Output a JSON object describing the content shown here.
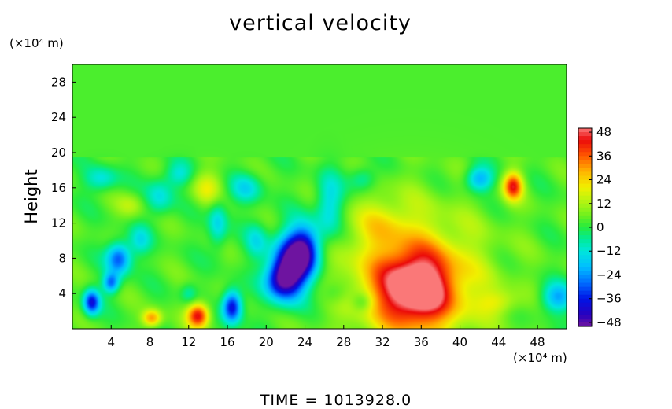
{
  "chart_data": {
    "type": "heatmap",
    "title": "vertical velocity",
    "ylabel": "Height",
    "x_unit": "(×10⁴ m)",
    "y_unit": "(×10⁴ m)",
    "x_ticks": [
      4,
      8,
      12,
      16,
      20,
      24,
      28,
      32,
      36,
      40,
      44,
      48
    ],
    "y_ticks": [
      4,
      8,
      12,
      16,
      20,
      24,
      28
    ],
    "xlim": [
      0,
      51
    ],
    "ylim": [
      0,
      30
    ],
    "colorbar": {
      "ticks": [
        48,
        36,
        24,
        12,
        0,
        -12,
        -24,
        -36,
        -48
      ],
      "range": [
        -50,
        50
      ]
    },
    "background_value": 3,
    "features": [
      {
        "x": 35.5,
        "y": 4.5,
        "value": 46,
        "sx": 2.8,
        "sy": 3.0
      },
      {
        "x": 35,
        "y": 6,
        "value": 20,
        "sx": 5.5,
        "sy": 5.5
      },
      {
        "x": 13,
        "y": 1.5,
        "value": 42,
        "sx": 0.8,
        "sy": 1.0
      },
      {
        "x": 8.2,
        "y": 1.2,
        "value": 28,
        "sx": 0.7,
        "sy": 0.7
      },
      {
        "x": 45.5,
        "y": 16.2,
        "value": 38,
        "sx": 0.7,
        "sy": 1.1
      },
      {
        "x": 22.5,
        "y": 7,
        "value": -48,
        "sx": 1.4,
        "sy": 2.5
      },
      {
        "x": 24,
        "y": 9,
        "value": -40,
        "sx": 1.2,
        "sy": 2.0
      },
      {
        "x": 21.5,
        "y": 5.5,
        "value": -30,
        "sx": 1.2,
        "sy": 1.5
      },
      {
        "x": 16.5,
        "y": 2.5,
        "value": -44,
        "sx": 0.7,
        "sy": 1.3
      },
      {
        "x": 2,
        "y": 3,
        "value": -40,
        "sx": 0.6,
        "sy": 1.0
      },
      {
        "x": 4.8,
        "y": 8,
        "value": -34,
        "sx": 0.9,
        "sy": 1.3
      },
      {
        "x": 4,
        "y": 5.2,
        "value": -30,
        "sx": 0.6,
        "sy": 0.8
      },
      {
        "x": 42,
        "y": 17,
        "value": -26,
        "sx": 1.0,
        "sy": 1.0
      },
      {
        "x": 50,
        "y": 3.5,
        "value": -24,
        "sx": 1.2,
        "sy": 1.2
      },
      {
        "x": 26.5,
        "y": 14,
        "value": -20,
        "sx": 1.0,
        "sy": 2.5
      },
      {
        "x": 15,
        "y": 12,
        "value": -18,
        "sx": 0.7,
        "sy": 2.0
      },
      {
        "x": 9,
        "y": 15,
        "value": -16,
        "sx": 1.0,
        "sy": 1.5
      },
      {
        "x": 3,
        "y": 17,
        "value": -16,
        "sx": 1.2,
        "sy": 1.0
      },
      {
        "x": 18,
        "y": 16,
        "value": -16,
        "sx": 1.2,
        "sy": 1.2
      },
      {
        "x": 30,
        "y": 17,
        "value": -14,
        "sx": 1.0,
        "sy": 1.0
      },
      {
        "x": 11,
        "y": 17.5,
        "value": -14,
        "sx": 1.0,
        "sy": 1.0
      },
      {
        "x": 7,
        "y": 10,
        "value": -14,
        "sx": 0.8,
        "sy": 1.2
      },
      {
        "x": 19,
        "y": 10,
        "value": -14,
        "sx": 0.8,
        "sy": 1.5
      },
      {
        "x": 27,
        "y": 4,
        "value": -10,
        "sx": 1.0,
        "sy": 1.0
      },
      {
        "x": 44,
        "y": 3,
        "value": 12,
        "sx": 1.5,
        "sy": 1.0
      },
      {
        "x": 14,
        "y": 16,
        "value": 14,
        "sx": 1.2,
        "sy": 1.4
      },
      {
        "x": 6,
        "y": 14,
        "value": 10,
        "sx": 1.0,
        "sy": 1.0
      },
      {
        "x": 32,
        "y": 12,
        "value": 10,
        "sx": 2.0,
        "sy": 2.0
      },
      {
        "x": 30,
        "y": 3,
        "value": -12,
        "sx": 0.8,
        "sy": 0.8
      },
      {
        "x": 12,
        "y": 4,
        "value": -10,
        "sx": 0.6,
        "sy": 0.8
      }
    ]
  },
  "footer": {
    "time_text": "TIME  =  1013928.0"
  }
}
